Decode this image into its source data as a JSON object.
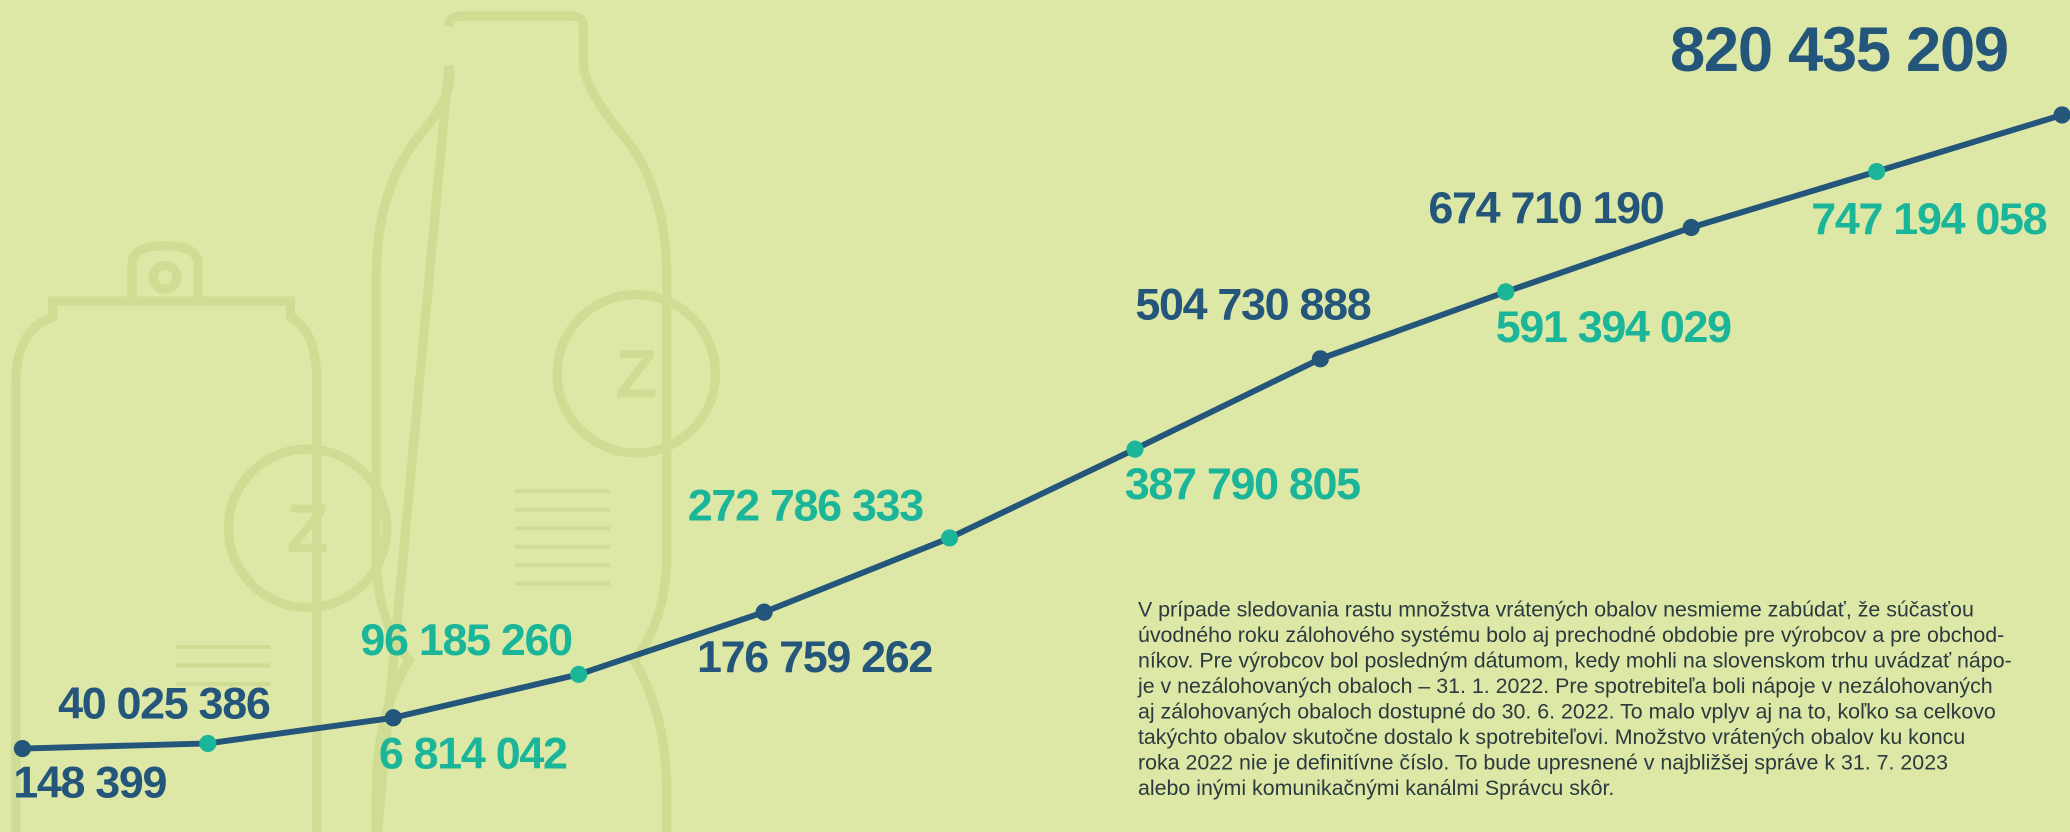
{
  "chart_data": {
    "type": "line",
    "categories": [
      null,
      null,
      null,
      null,
      null,
      null,
      null,
      null,
      null,
      null,
      null,
      null
    ],
    "values": [
      148399,
      6814042,
      40025386,
      96185260,
      176759262,
      272786333,
      387790805,
      504730888,
      591394029,
      674710190,
      747194058,
      820435209
    ],
    "value_labels": [
      "148 399",
      "6 814 042",
      "40 025 386",
      "96 185 260",
      "176 759 262",
      "272 786 333",
      "387 790 805",
      "504 730 888",
      "591 394 029",
      "674 710 190",
      "747 194 058",
      "820 435 209"
    ],
    "color": "#24557a",
    "point_colors": [
      "#24557a",
      "#1bb59a",
      "#24557a",
      "#1bb59a",
      "#24557a",
      "#1bb59a",
      "#1bb59a",
      "#24557a",
      "#1bb59a",
      "#24557a",
      "#1bb59a",
      "#24557a"
    ],
    "ylim": [
      0,
      900000000
    ],
    "annotation": [
      "V prípade sledovania rastu množstva vrátených obalov nesmieme zabúdať, že súčasťou",
      "úvodného roku zálohového systému bolo aj prechodné obdobie pre výrobcov a pre obchod-",
      "níkov. Pre výrobcov bol posledným dátumom, kedy mohli na slovenskom trhu uvádzať nápo-",
      "je v nezálohovaných obaloch – 31. 1. 2022. Pre spotrebiteľa boli nápoje v nezálohovaných",
      "aj zálohovaných obaloch dostupné do 30. 6. 2022. To malo vplyv aj na to, koľko sa celkovo",
      "takýchto obalov skutočne dostalo k spotrebiteľovi. Množstvo vrátených obalov ku koncu",
      "roka 2022 nie je definitívne číslo. To bude upresnené v najbližšej správe k 31. 7. 2023",
      "alebo inými komunikačnými kanálmi Správcu skôr."
    ]
  }
}
